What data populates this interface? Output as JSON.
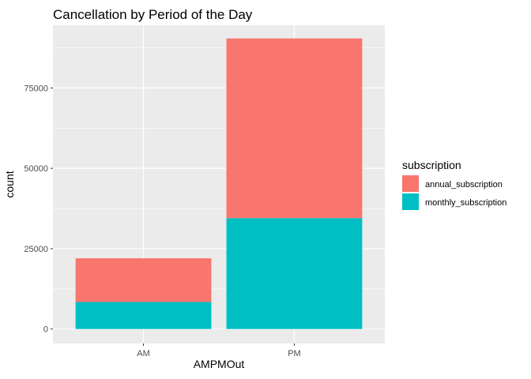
{
  "chart_data": {
    "type": "bar",
    "stacked": true,
    "title": "Cancellation by Period of the Day",
    "xlabel": "AMPMOut",
    "ylabel": "count",
    "categories": [
      "AM",
      "PM"
    ],
    "series": [
      {
        "name": "annual_subscription",
        "values": [
          13600,
          55900
        ],
        "color": "#F8766D"
      },
      {
        "name": "monthly_subscription",
        "values": [
          8400,
          34500
        ],
        "color": "#00BFC4"
      }
    ],
    "y_ticks": [
      0,
      25000,
      50000,
      75000
    ],
    "y_tick_labels": [
      "0",
      "25000",
      "50000",
      "75000"
    ],
    "ylim": [
      -4500,
      94500
    ],
    "legend": {
      "title": "subscription",
      "position": "right"
    },
    "grid": true,
    "panel_background": "#EBEBEB",
    "grid_color": "#FFFFFF"
  }
}
